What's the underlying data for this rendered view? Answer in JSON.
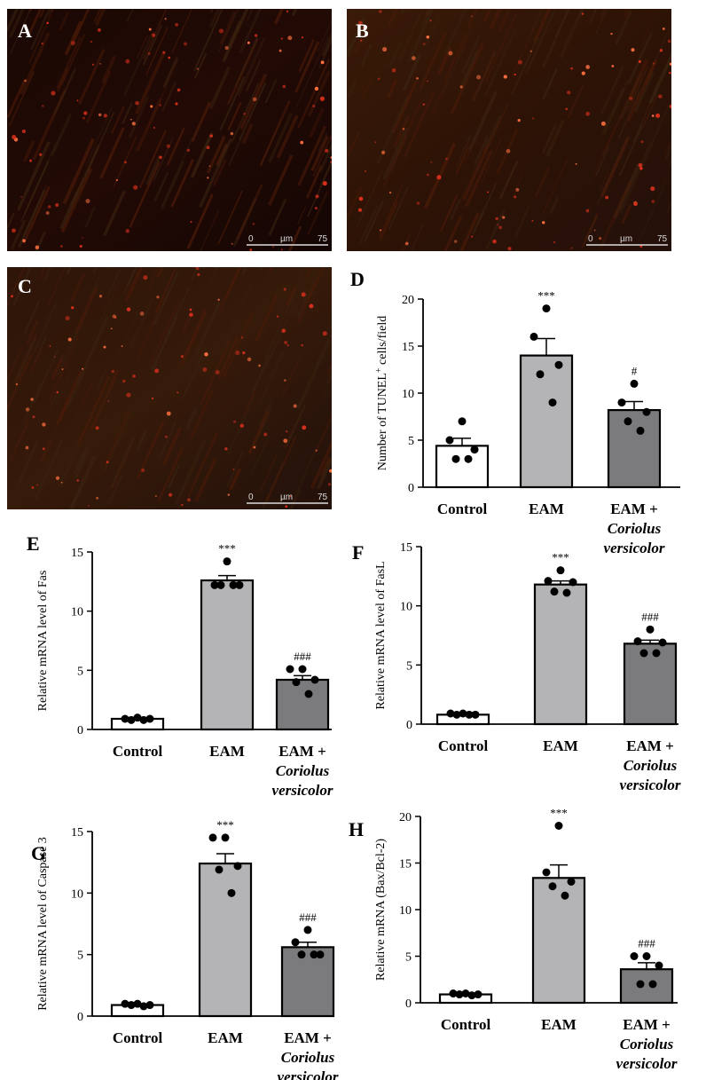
{
  "micrographs": [
    {
      "letter": "A",
      "scale": {
        "start": "0",
        "unit": "µm",
        "end": "75"
      }
    },
    {
      "letter": "B",
      "scale": {
        "start": "0",
        "unit": "µm",
        "end": "75"
      }
    },
    {
      "letter": "C",
      "scale": {
        "start": "0",
        "unit": "µm",
        "end": "75"
      }
    }
  ],
  "chart_data": [
    {
      "panel": "D",
      "type": "bar",
      "ylabel": "Number of TUNEL+ cells/field",
      "categories": [
        "Control",
        "EAM",
        "EAM + Coriolus versicolor"
      ],
      "values": [
        4.4,
        14.0,
        8.2
      ],
      "sem": [
        0.8,
        1.8,
        0.9
      ],
      "points": [
        [
          7,
          5,
          4,
          3,
          3
        ],
        [
          19,
          16,
          13,
          12,
          9
        ],
        [
          11,
          9,
          8,
          7,
          6
        ]
      ],
      "significance": [
        "",
        "***",
        "#"
      ],
      "ylim": [
        0,
        20
      ],
      "yticks": [
        0,
        5,
        10,
        15,
        20
      ],
      "bar_colors": [
        "#ffffff",
        "#b4b4b7",
        "#7b7b7d"
      ]
    },
    {
      "panel": "E",
      "type": "bar",
      "ylabel": "Relative mRNA level of Fas",
      "categories": [
        "Control",
        "EAM",
        "EAM + Coriolus versicolor"
      ],
      "values": [
        0.9,
        12.6,
        4.2
      ],
      "sem": [
        0.1,
        0.4,
        0.35
      ],
      "points": [
        [
          1,
          0.9,
          0.9,
          0.8,
          0.8
        ],
        [
          14.2,
          12.2,
          12.2,
          12.2,
          12.2
        ],
        [
          5.1,
          5.1,
          4.2,
          4.0,
          3.0
        ]
      ],
      "significance": [
        "",
        "***",
        "###"
      ],
      "ylim": [
        0,
        15
      ],
      "yticks": [
        0,
        5,
        10,
        15
      ],
      "bar_colors": [
        "#ffffff",
        "#b4b4b7",
        "#7b7b7d"
      ]
    },
    {
      "panel": "F",
      "type": "bar",
      "ylabel": "Relative mRNA level of FasL",
      "categories": [
        "Control",
        "EAM",
        "EAM + Coriolus versicolor"
      ],
      "values": [
        0.8,
        11.8,
        6.8
      ],
      "sem": [
        0.05,
        0.3,
        0.3
      ],
      "points": [
        [
          0.9,
          0.9,
          0.8,
          0.8,
          0.8
        ],
        [
          13,
          12.1,
          12,
          11.2,
          11.1
        ],
        [
          8,
          7.0,
          6.9,
          6.0,
          6.0
        ]
      ],
      "significance": [
        "",
        "***",
        "###"
      ],
      "ylim": [
        0,
        15
      ],
      "yticks": [
        0,
        5,
        10,
        15
      ],
      "bar_colors": [
        "#ffffff",
        "#b4b4b7",
        "#7b7b7d"
      ]
    },
    {
      "panel": "G",
      "type": "bar",
      "ylabel": "Relative mRNA level of Caspase 3",
      "categories": [
        "Control",
        "EAM",
        "EAM + Coriolus versicolor"
      ],
      "values": [
        0.9,
        12.4,
        5.6
      ],
      "sem": [
        0.05,
        0.8,
        0.4
      ],
      "points": [
        [
          1.0,
          1.0,
          0.9,
          0.9,
          0.8
        ],
        [
          14.5,
          14.5,
          12.2,
          11.9,
          10
        ],
        [
          7,
          6,
          5,
          5,
          5
        ]
      ],
      "significance": [
        "",
        "***",
        "###"
      ],
      "ylim": [
        0,
        15
      ],
      "yticks": [
        0,
        5,
        10,
        15
      ],
      "bar_colors": [
        "#ffffff",
        "#b4b4b7",
        "#7b7b7d"
      ]
    },
    {
      "panel": "H",
      "type": "bar",
      "ylabel": "Relative mRNA (Bax/Bcl-2)",
      "categories": [
        "Control",
        "EAM",
        "EAM + Coriolus versicolor"
      ],
      "values": [
        0.9,
        13.4,
        3.6
      ],
      "sem": [
        0.05,
        1.4,
        0.7
      ],
      "points": [
        [
          1.0,
          1.0,
          0.9,
          0.9,
          0.8
        ],
        [
          19,
          14,
          13,
          12.5,
          11.5
        ],
        [
          5,
          5,
          4,
          2,
          2
        ]
      ],
      "significance": [
        "",
        "***",
        "###"
      ],
      "ylim": [
        0,
        20
      ],
      "yticks": [
        0,
        5,
        10,
        15,
        20
      ],
      "bar_colors": [
        "#ffffff",
        "#b4b4b7",
        "#7b7b7d"
      ]
    }
  ],
  "category_labels": {
    "control": "Control",
    "eam": "EAM",
    "combo_line1": "EAM +",
    "combo_line2": "Coriolus",
    "combo_line3": "versicolor"
  }
}
